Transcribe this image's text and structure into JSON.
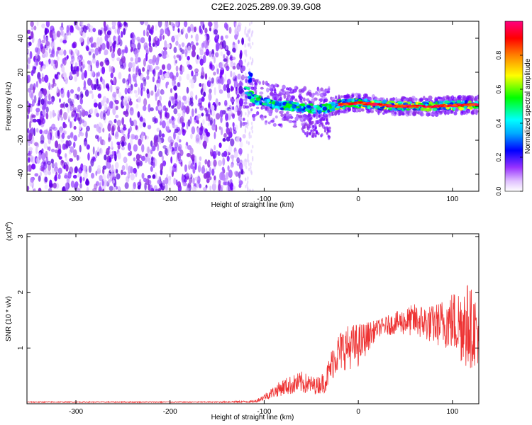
{
  "title": "C2E2.2025.289.09.39.G08",
  "chart_data": [
    {
      "type": "heatmap",
      "xlabel": "Height of straight line (km)",
      "ylabel": "Frequency (Hz)",
      "xlim": [
        -352,
        128
      ],
      "ylim": [
        -50,
        50
      ],
      "xticks": [
        -300,
        -200,
        -100,
        0,
        100
      ],
      "yticks": [
        -40,
        -20,
        0,
        20,
        40
      ],
      "colorbar": {
        "label": "Normalized spectral amplitude",
        "range": [
          0,
          1
        ],
        "ticks": [
          "0.0",
          "0.2",
          "0.4",
          "0.6",
          "0.8"
        ],
        "colors": [
          "#ffffff",
          "#b86cff",
          "#7000ff",
          "#0000ff",
          "#00ffff",
          "#00ff00",
          "#ffff00",
          "#ff8000",
          "#ff0000",
          "#ff007f"
        ]
      },
      "regions": [
        {
          "name": "noise",
          "x_range": [
            -352,
            -120
          ],
          "freq_range": [
            -50,
            50
          ],
          "amplitude": 0.05
        },
        {
          "name": "signal-onset",
          "x_range": [
            -120,
            -30
          ],
          "freq_range": [
            -10,
            20
          ],
          "amplitude": 0.3
        },
        {
          "name": "signal",
          "x_range": [
            -30,
            128
          ],
          "freq_range": [
            -3,
            5
          ],
          "amplitude": 0.9
        }
      ],
      "ridge": [
        {
          "x": -120,
          "f": 10
        },
        {
          "x": -110,
          "f": 4
        },
        {
          "x": -90,
          "f": 1
        },
        {
          "x": -70,
          "f": 0
        },
        {
          "x": -40,
          "f": -2
        },
        {
          "x": -20,
          "f": 1
        },
        {
          "x": 0,
          "f": 2
        },
        {
          "x": 40,
          "f": 0
        },
        {
          "x": 80,
          "f": 0
        },
        {
          "x": 128,
          "f": 1
        }
      ]
    },
    {
      "type": "line",
      "xlabel": "Height of straight line (km)",
      "ylabel": "SNR (10 * v/v)",
      "yscale_label": "(x10",
      "yscale_exp": "4",
      "xlim": [
        -352,
        128
      ],
      "ylim": [
        0,
        3.05
      ],
      "xticks": [
        -300,
        -200,
        -100,
        0,
        100
      ],
      "yticks": [
        1,
        2,
        3
      ],
      "color": "#ee3333",
      "envelope": {
        "x": [
          -352,
          -150,
          -110,
          -100,
          -80,
          -60,
          -45,
          -35,
          -25,
          -15,
          0,
          20,
          40,
          60,
          80,
          100,
          115,
          128
        ],
        "mean": [
          0.03,
          0.03,
          0.04,
          0.12,
          0.3,
          0.38,
          0.32,
          0.4,
          0.85,
          1.0,
          1.05,
          1.35,
          1.45,
          1.5,
          1.42,
          1.48,
          1.4,
          1.3
        ],
        "amp": [
          0.01,
          0.01,
          0.02,
          0.06,
          0.15,
          0.2,
          0.15,
          0.2,
          0.35,
          0.4,
          0.4,
          0.15,
          0.2,
          0.3,
          0.35,
          0.55,
          0.8,
          0.6
        ]
      }
    }
  ]
}
